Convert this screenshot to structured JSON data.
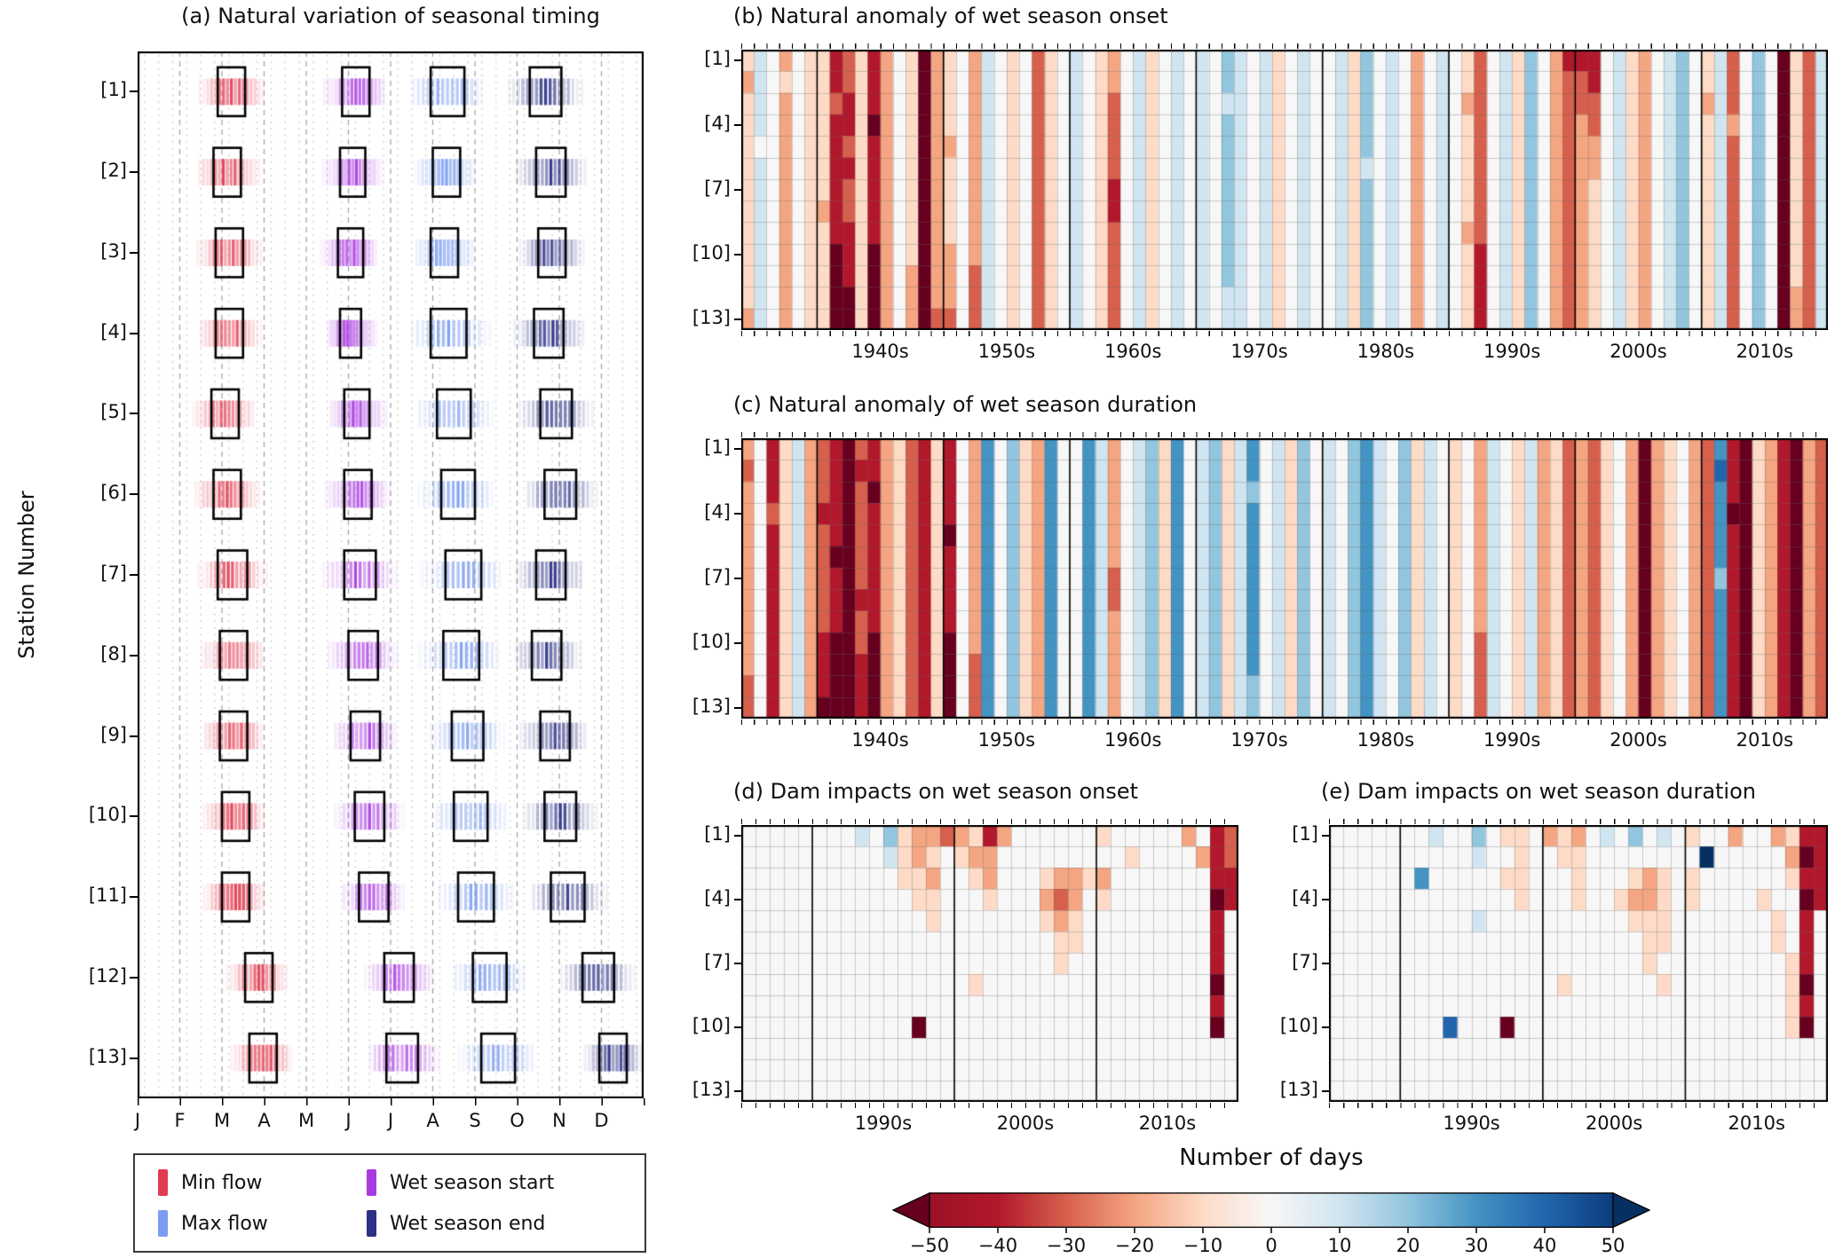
{
  "value_encoding": {
    "A": -50,
    "B": -40,
    "C": -30,
    "D": -20,
    "E": -10,
    "F": 0,
    "G": 10,
    "H": 20,
    "I": 30,
    "J": 40,
    "K": 50
  },
  "palette": {
    "-50": "#67001f",
    "-40": "#b2182b",
    "-30": "#d6604d",
    "-20": "#f4a582",
    "-10": "#fddbc7",
    "0": "#f7f7f7",
    "10": "#d1e5f0",
    "20": "#92c5de",
    "30": "#4393c3",
    "40": "#2166ac",
    "50": "#053061"
  },
  "chart_data": [
    {
      "id": "a",
      "type": "distribution-timeline",
      "title": "(a) Natural variation of seasonal timing",
      "ylabel": "Station Number",
      "xticklabels": [
        "J",
        "F",
        "M",
        "A",
        "M",
        "J",
        "J",
        "A",
        "S",
        "O",
        "N",
        "D"
      ],
      "stations": [
        "[1]",
        "[2]",
        "[3]",
        "[4]",
        "[5]",
        "[6]",
        "[7]",
        "[8]",
        "[9]",
        "[10]",
        "[11]",
        "[12]",
        "[13]"
      ],
      "series": [
        {
          "key": "min_flow",
          "label": "Min flow",
          "color": "#e13b4f",
          "boxes_month_range": [
            [
              1.9,
              2.55
            ],
            [
              1.8,
              2.45
            ],
            [
              1.85,
              2.5
            ],
            [
              1.85,
              2.5
            ],
            [
              1.75,
              2.4
            ],
            [
              1.8,
              2.45
            ],
            [
              1.9,
              2.6
            ],
            [
              1.95,
              2.6
            ],
            [
              1.95,
              2.6
            ],
            [
              2.0,
              2.65
            ],
            [
              2.0,
              2.65
            ],
            [
              2.55,
              3.2
            ],
            [
              2.65,
              3.3
            ]
          ]
        },
        {
          "key": "max_flow",
          "label": "Max flow",
          "color": "#7b9cf0",
          "boxes_month_range": [
            [
              6.95,
              7.75
            ],
            [
              7.0,
              7.65
            ],
            [
              6.95,
              7.6
            ],
            [
              6.95,
              7.8
            ],
            [
              7.1,
              7.9
            ],
            [
              7.2,
              8.0
            ],
            [
              7.3,
              8.15
            ],
            [
              7.25,
              8.1
            ],
            [
              7.45,
              8.2
            ],
            [
              7.5,
              8.3
            ],
            [
              7.6,
              8.45
            ],
            [
              7.95,
              8.75
            ],
            [
              8.15,
              8.95
            ]
          ]
        },
        {
          "key": "wet_season_start",
          "label": "Wet season start",
          "color": "#a93be0",
          "boxes_month_range": [
            [
              4.85,
              5.5
            ],
            [
              4.8,
              5.4
            ],
            [
              4.75,
              5.35
            ],
            [
              4.8,
              5.3
            ],
            [
              4.9,
              5.5
            ],
            [
              4.9,
              5.55
            ],
            [
              4.9,
              5.65
            ],
            [
              5.0,
              5.7
            ],
            [
              5.05,
              5.75
            ],
            [
              5.15,
              5.85
            ],
            [
              5.25,
              5.95
            ],
            [
              5.85,
              6.55
            ],
            [
              5.9,
              6.65
            ]
          ]
        },
        {
          "key": "wet_season_end",
          "label": "Wet season end",
          "color": "#2b3185",
          "boxes_month_range": [
            [
              9.3,
              10.05
            ],
            [
              9.45,
              10.15
            ],
            [
              9.5,
              10.15
            ],
            [
              9.4,
              10.1
            ],
            [
              9.55,
              10.3
            ],
            [
              9.65,
              10.4
            ],
            [
              9.45,
              10.15
            ],
            [
              9.35,
              10.05
            ],
            [
              9.55,
              10.25
            ],
            [
              9.65,
              10.4
            ],
            [
              9.8,
              10.6
            ],
            [
              10.55,
              11.3
            ],
            [
              10.95,
              11.6
            ]
          ]
        }
      ]
    },
    {
      "id": "b",
      "type": "heatmap",
      "title": "(b) Natural anomaly of wet season onset",
      "unit": "days",
      "year_start": 1934,
      "year_end": 2019,
      "xticklabels": [
        "1940s",
        "1950s",
        "1960s",
        "1970s",
        "1980s",
        "1990s",
        "2000s",
        "2010s"
      ],
      "yticklabels": [
        "[1]",
        "[4]",
        "[7]",
        "[10]",
        "[13]"
      ],
      "encoding_note": "Each character is one year for one station; letters map to day anomalies via value_encoding.",
      "rows_encoded": [
        "EGFDFEEBCEBDFEADEFDGFEFCEFGFEDFGEFGFGFHGFGEFGFFGEHFGFDFGFECFGEHFDBBBFGEDFGHFEGCFHFAECG",
        "DGFEFEEBCEBDFEADEFDGFEFCEFGFEDFGEFGFGFHGFGEFGFFGEHFGFDFGFECFGEHFDCCBFGEDFGHFEGCFHFAECG",
        "EGFDFEECBEBDFEADEFDGFEFCEFGFECFGEFGFGFGGFGEFGFFGEHFGFDFGFDCFGEHFDCCCFGEDFGHFDGCFHFAECG",
        "EGFDFEEBBEADFEADEFDGFEFCEFGFECFGEFGFGFHGFGEFGFFGEHFGFDFGFECFGEHFDCDCFGEDFGHFEGDFHFAECG",
        "EFFDFEEBCEBDFEADDFDGFEFCEFGFECFGEFGFGFHGFGEFGFFGEHFGFDFGFECFGEHFDCDDFGEDFGHFEGCFHFAECG",
        "EGFDFEEBBEBDFEADEFDGFEFCEFGFECFGEFGFGFHGFGEFGFFGEGFGFDFGFECFGEHFDCDDFGEDFGHFEGCFHFAECG",
        "EGFDFEEBCEBDFEADEFDGFEFCEFGFEBFGEFGFGFHGFGEFGFFGEHFGFDFGFECFGEHFDCDEFGEDFGHFEGCFHFAECG",
        "EGFDFEDBCEBDFEADEFDGFEFCEFGFEBFGEFGFGFHGFGEFGFFGEHFGFDFGFECFGEHFDCDEFGEDFGHFEGCFHFAECG",
        "EGFDFEEBBEBDFEADEFDGFEFCEFGFECFGEFGFGFHGFGEFGFFGEHFGFDFGFDCFGEHFDCDEFGEDFGHFEGCFHFAECG",
        "EGFDFEEABEADFEADDFDGFEFCEFGFECFGEFGFGFHGFGEFGFFGEHFGFDFGFEBFGEHFDCDEFGEDFGHFEGCFHFAECG",
        "EGFDFEEABEADFDADDFCGFEFCEFGFECFGEFGFGFHGFGEFGFFGEHFGFDFGFEBFGEHFDCDEFGEDFGHFEGCFHFAECG",
        "EGFDFEEAAEADFDADDFCGFEFCEFGFECFGEFGFGFGGFGEFGFFGEHFGFDFGFEBFGEHFDCDEFGEDFGHFEGCFHFADCG",
        "DGFDFEEAAEADFDACCFCGFEFCEFGFECFGEFGFGFGGFGEFGFFGEHFGFDFGFEBFGEHFDCDEFGEDFGHFEGCFHFADCG"
      ]
    },
    {
      "id": "c",
      "type": "heatmap",
      "title": "(c) Natural anomaly of wet season duration",
      "unit": "days",
      "year_start": 1934,
      "year_end": 2019,
      "xticklabels": [
        "1940s",
        "1950s",
        "1960s",
        "1970s",
        "1980s",
        "1990s",
        "2000s",
        "2010s"
      ],
      "yticklabels": [
        "[1]",
        "[4]",
        "[7]",
        "[10]",
        "[13]"
      ],
      "rows_encoded": [
        "DFBEGDCBACBDECBEBFDIFHEDIFFIGDFGHEIFGHEGIFGEHFGFHIGFHEGFEFDGFEGDECDCEFDADEFDCIBAEDBADC",
        "CFBEGDCBABBDECBEBFDIFHEDIFFIGDFGHEIFGHEGIFGEHFGFHIGFHEGFEFDGFEGDECDCEFDADEFDCJBAEDBADC",
        "DFBEGDCBACADECBEBFDIFHEDIFFIGDFGHEIFGHEGHFGEHFGFHIGFHEGFEFDGFEGDECDCEFDADEFDCIBAEDBADC",
        "DFCEGDBBACBDECBEBFDIFHEDIFFIGDFGHEIFGHEGIFGEHFGFHIGFHEGFEFDGFEGDECDCEFDADEFDCIAAEDBADC",
        "DFBEGDCBACBDECBEAFDIFHEDIFFIGDFGHEIFGHEGIFGEHFGFHIGFHEGFEFDGFEGDECDCEFDADEFDCIBAEDBADC",
        "DFBEGDCAACBDECBEBFDIFHEDIFFIGDFGHEIFGHEGIFGEHFGFHIGFHEGFEFDGFEGDECDCEFDADEFDCIBAEDBADC",
        "DFBEGDCBACBDECBEBFDIFHEDIFFIGCFGHEIFGHEGIFGEHFGFHIGFHEGFEFDGFEGDECDCEFDADEFDCHBAEDBADC",
        "DFBEGDCBABBDECBEBFDIFHEDIFFIGCFGHEIFGHEGIFGEHFGFHIGFHEGFEFDGFEGDECDCEFDADEFDCIBAEDBADC",
        "DFBEGDCBACBDECBEBFDIFHEDIFFIGDFGHEIFGHEGIFGEHFGFHIGFHEGFEFDGFEGDECDCEFDADEFDCIBAEDBADC",
        "DFBEGDBAACADECBEAFDIFHEDIFFIGDFGHEIFGHEGIFGEHFGFHIGFHEGFEFCGFEGDECDCEFDADEFDCIBAEDBADC",
        "DFBEGDBAABADECBEAFCIFHEDIFFIGDFGHEIFGHEGIFGEHFGFHIGFHEGFEFCGFEGDECDCEFDADEFDCIBAEDBADC",
        "CFBEGDBAABADECBEAFCIFHEDIFFIGDFGHEIFGHEGHFGEHFGFHIGFHEGFEFCGFEGDECDCEFDADEFDCIBAEDBADC",
        "CFBEGDAAABADECBEAFCIFHEDIFFIGDFGHEIFGHEGHFGEHFGFHIGFHEGFEFCGFEGDECDCEFDADEFDCIBAEDBADC"
      ]
    },
    {
      "id": "d",
      "type": "heatmap",
      "title": "(d) Dam impacts on wet season onset",
      "unit": "days",
      "year_start": 1985,
      "year_end": 2019,
      "xticklabels": [
        "1990s",
        "2000s",
        "2010s"
      ],
      "yticklabels": [
        "[1]",
        "[4]",
        "[7]",
        "[10]",
        "[13]"
      ],
      "rows_encoded": [
        "FFFFFFFFGFHEDDCDEBDFFFFFFEFFFFFDFBC",
        "FFFFFFFFFFGEDEFEDDFFFFFFFFFEFFFFDBC",
        "FFFFFFFFFFFEEDFFEDFFFEDDEDFFFFFFFBB",
        "FFFFFFFFFFFFEEFFFEFFFDCDFEFFFFFFFAB",
        "FFFFFFFFFFFFFEFFFFFFFEDEFFFFFFFFFBF",
        "FFFFFFFFFFFFFFFFFFFFFFEEFFFFFFFFFBF",
        "FFFFFFFFFFFFFFFFFFFFFFEFFFFFFFFFFBF",
        "FFFFFFFFFFFFFFFFEFFFFFFFFFFFFFFFFAF",
        "FFFFFFFFFFFFFFFFFFFFFFFFFFFFFFFFFBF",
        "FFFFFFFFFFFFAFFFFFFFFFFFFFFFFFFFFAF",
        "FFFFFFFFFFFFFFFFFFFFFFFFFFFFFFFFFFF",
        "FFFFFFFFFFFFFFFFFFFFFFFFFFFFFFFFFFF",
        "FFFFFFFFFFFFFFFFFFFFFFFFFFFFFFFFFFF"
      ]
    },
    {
      "id": "e",
      "type": "heatmap",
      "title": "(e) Dam impacts on wet season duration",
      "unit": "days",
      "year_start": 1985,
      "year_end": 2019,
      "xticklabels": [
        "1990s",
        "2000s",
        "2010s"
      ],
      "yticklabels": [
        "[1]",
        "[4]",
        "[7]",
        "[10]",
        "[13]"
      ],
      "rows_encoded": [
        "FFFFFFFGFFHFEEFDEDFGFHFGFEFFDFFDEBB",
        "FFFFFFFFFFGFFEFFEEFFFFFFFFKFFFFFDAB",
        "FFFFFFIFFFFFEEFFFEFFFEDEFEFFFFFFEBB",
        "FFFFFFFFFFFFFEFFFEFFEDDEFEFFFFEFFAB",
        "FFFFFFFFFFGFFFFFFFFFFEEEFFFFFFFEFBF",
        "FFFFFFFFFFFFFFFFFFFFFFEEFFFFFFFEFBF",
        "FFFFFFFFFFFFFFFFFFFFFFEFFFFFFFFFEBF",
        "FFFFFFFFFFFFFFFFEFFFFFFEFFFFFFFFEAF",
        "FFFFFFFFFFFFFFFFFFFFFFFFFFFFFFFFEBF",
        "FFFFFFFFJFFFAFFFFFFFFFFFFFFFFFFFEAF",
        "FFFFFFFFFFFFFFFFFFFFFFFFFFFFFFFFFFF",
        "FFFFFFFFFFFFFFFFFFFFFFFFFFFFFFFFFFF",
        "FFFFFFFFFFFFFFFFFFFFFFFFFFFFFFFFFFF"
      ]
    }
  ],
  "colorbar": {
    "title": "Number of days",
    "min": -50,
    "max": 50,
    "extend": "both",
    "tick_labels": [
      "−50",
      "−40",
      "−30",
      "−20",
      "−10",
      "0",
      "10",
      "20",
      "30",
      "40",
      "50"
    ],
    "arrow_left_color": "#67001f",
    "arrow_right_color": "#053061",
    "body_end_colors": [
      "#9c1127",
      "#0c3d7e"
    ]
  }
}
